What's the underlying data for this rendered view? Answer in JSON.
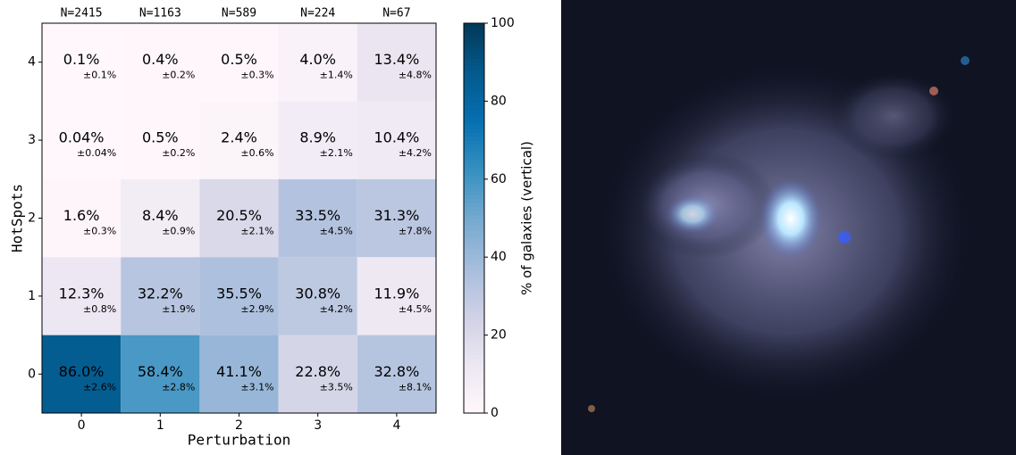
{
  "chart_data": {
    "type": "heatmap",
    "x_label": "Perturbation",
    "y_label": "HotSpots",
    "x_categories": [
      "0",
      "1",
      "2",
      "3",
      "4"
    ],
    "y_categories": [
      "0",
      "1",
      "2",
      "3",
      "4"
    ],
    "column_labels": [
      "N=2415",
      "N=1163",
      "N=589",
      "N=224",
      "N=67"
    ],
    "values": [
      [
        86.0,
        58.4,
        41.1,
        22.8,
        32.8
      ],
      [
        12.3,
        32.2,
        35.5,
        30.8,
        11.9
      ],
      [
        1.6,
        8.4,
        20.5,
        33.5,
        31.3
      ],
      [
        0.04,
        0.5,
        2.4,
        8.9,
        10.4
      ],
      [
        0.1,
        0.4,
        0.5,
        4.0,
        13.4
      ]
    ],
    "value_labels": [
      [
        "86.0%",
        "58.4%",
        "41.1%",
        "22.8%",
        "32.8%"
      ],
      [
        "12.3%",
        "32.2%",
        "35.5%",
        "30.8%",
        "11.9%"
      ],
      [
        "1.6%",
        "8.4%",
        "20.5%",
        "33.5%",
        "31.3%"
      ],
      [
        "0.04%",
        "0.5%",
        "2.4%",
        "8.9%",
        "10.4%"
      ],
      [
        "0.1%",
        "0.4%",
        "0.5%",
        "4.0%",
        "13.4%"
      ]
    ],
    "errors": [
      [
        2.6,
        2.8,
        3.1,
        3.5,
        8.1
      ],
      [
        0.8,
        1.9,
        2.9,
        4.2,
        4.5
      ],
      [
        0.3,
        0.9,
        2.1,
        4.5,
        7.8
      ],
      [
        0.04,
        0.2,
        0.6,
        2.1,
        4.2
      ],
      [
        0.1,
        0.2,
        0.3,
        1.4,
        4.8
      ]
    ],
    "error_labels": [
      [
        "±2.6%",
        "±2.8%",
        "±3.1%",
        "±3.5%",
        "±8.1%"
      ],
      [
        "±0.8%",
        "±1.9%",
        "±2.9%",
        "±4.2%",
        "±4.5%"
      ],
      [
        "±0.3%",
        "±0.9%",
        "±2.1%",
        "±4.5%",
        "±7.8%"
      ],
      [
        "±0.04%",
        "±0.2%",
        "±0.6%",
        "±2.1%",
        "±4.2%"
      ],
      [
        "±0.1%",
        "±0.2%",
        "±0.3%",
        "±1.4%",
        "±4.8%"
      ]
    ],
    "colorbar_label": "% of galaxies (vertical)",
    "clim": [
      0,
      100
    ],
    "cticks": [
      0,
      20,
      40,
      60,
      80,
      100
    ],
    "colormap": [
      "#fff7fb",
      "#ece7f2",
      "#d0d1e6",
      "#a6bddb",
      "#74a9cf",
      "#3690c0",
      "#0570b0",
      "#045a8d",
      "#023858"
    ]
  }
}
